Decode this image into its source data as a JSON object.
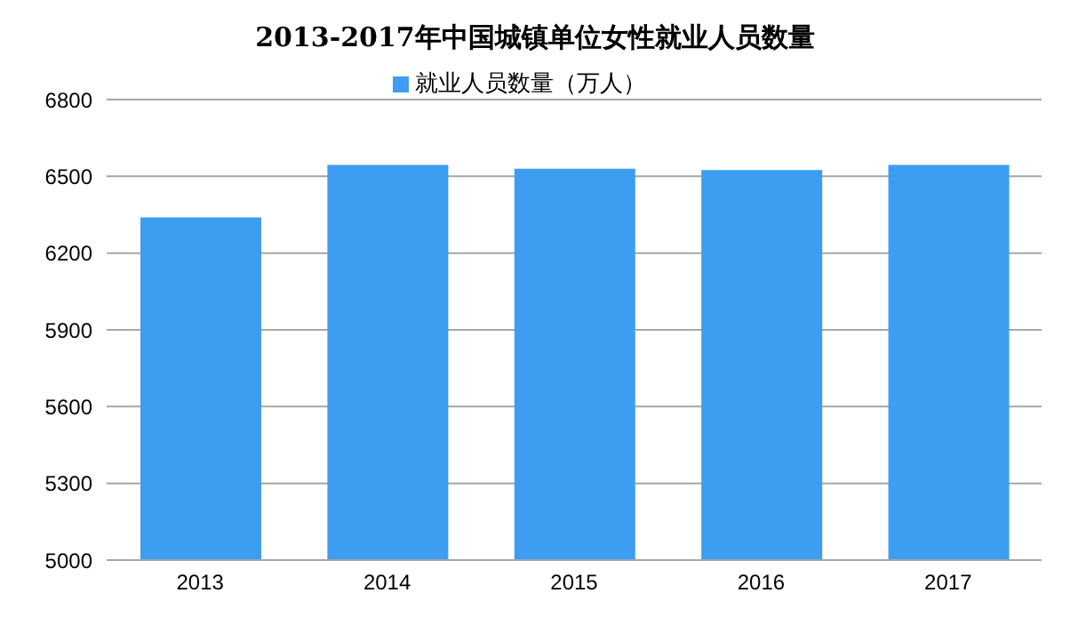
{
  "chart_data": {
    "type": "bar",
    "title": "2013-2017年中国城镇单位女性就业人员数量",
    "categories": [
      "2013",
      "2014",
      "2015",
      "2016",
      "2017"
    ],
    "series": [
      {
        "name": "就业人员数量（万人）",
        "color": "#3d9df0",
        "values": [
          6340,
          6545,
          6530,
          6525,
          6545
        ]
      }
    ],
    "ylim": [
      5000,
      6800
    ],
    "yticks": [
      5000,
      5300,
      5600,
      5900,
      6200,
      6500,
      6800
    ],
    "grid": "y",
    "legend": "top"
  }
}
